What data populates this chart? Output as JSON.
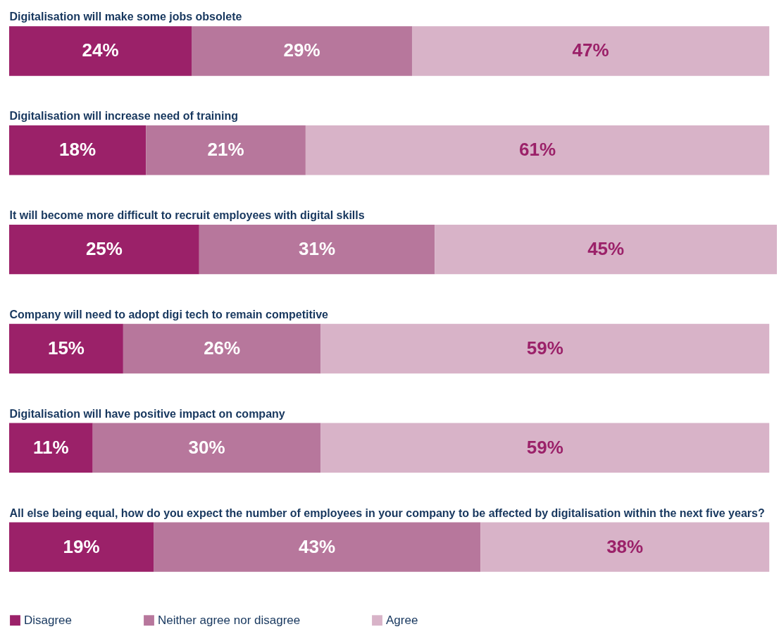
{
  "chart_data": {
    "type": "bar",
    "orientation": "horizontal",
    "stacked": true,
    "legend": "bottom left",
    "categories": [
      "Digitalisation will make some jobs obsolete",
      "Digitalisation will increase need of training",
      "It will become more difficult to recruit employees with digital skills",
      "Company will need to adopt digi tech to remain competitive",
      "Digitalisation will have positive impact on company",
      "All else being equal, how do you expect the number of employees in your company to be affected by digitalisation within the next five years?"
    ],
    "series": [
      {
        "name": "Disagree",
        "color": "#9b2169",
        "values": [
          24,
          18,
          25,
          15,
          11,
          19
        ],
        "value_labels": [
          "24%",
          "18%",
          "25%",
          "15%",
          "11%",
          "19%"
        ]
      },
      {
        "name": "Neither agree nor disagree",
        "color": "#b7779c",
        "values": [
          29,
          21,
          31,
          26,
          30,
          43
        ],
        "value_labels": [
          "29%",
          "21%",
          "31%",
          "26%",
          "30%",
          "43%"
        ]
      },
      {
        "name": "Agree",
        "color": "#d8b3c8",
        "values": [
          47,
          61,
          45,
          59,
          59,
          38
        ],
        "value_labels": [
          "47%",
          "61%",
          "45%",
          "59%",
          "59%",
          "38%"
        ]
      }
    ]
  }
}
